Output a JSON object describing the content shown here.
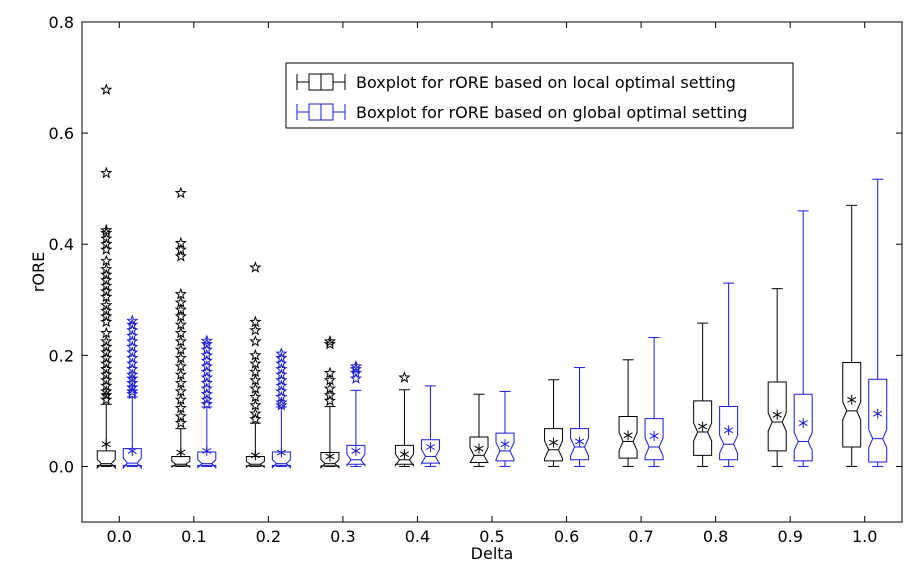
{
  "chart_data": {
    "type": "boxplot",
    "xlabel": "Delta",
    "ylabel": "rORE",
    "ylim": [
      -0.1,
      0.8
    ],
    "yticks": [
      0.0,
      0.2,
      0.4,
      0.6,
      0.8
    ],
    "ytick_labels": [
      "0.0",
      "0.2",
      "0.4",
      "0.6",
      "0.8"
    ],
    "categories": [
      "0.0",
      "0.1",
      "0.2",
      "0.3",
      "0.4",
      "0.5",
      "0.6",
      "0.7",
      "0.8",
      "0.9",
      "1.0"
    ],
    "legend_position": "top-center",
    "series": [
      {
        "name": "Boxplot for rORE based on local optimal setting",
        "color": "#000000",
        "boxes": [
          {
            "min": 0,
            "q1": 0.002,
            "median": 0.005,
            "q3": 0.028,
            "max": 0.112,
            "mean": 0.04,
            "outliers": [
              0.678,
              0.528,
              0.425,
              0.42,
              0.41,
              0.4,
              0.39,
              0.37,
              0.355,
              0.345,
              0.335,
              0.325,
              0.315,
              0.305,
              0.29,
              0.28,
              0.27,
              0.26,
              0.24,
              0.225,
              0.215,
              0.205,
              0.195,
              0.185,
              0.175,
              0.165,
              0.155,
              0.145,
              0.135,
              0.128,
              0.12
            ]
          },
          {
            "min": 0,
            "q1": 0.001,
            "median": 0.004,
            "q3": 0.018,
            "max": 0.068,
            "mean": 0.025,
            "outliers": [
              0.492,
              0.402,
              0.39,
              0.378,
              0.31,
              0.295,
              0.282,
              0.27,
              0.255,
              0.24,
              0.225,
              0.21,
              0.195,
              0.18,
              0.165,
              0.15,
              0.135,
              0.12,
              0.105,
              0.09,
              0.078
            ]
          },
          {
            "min": 0,
            "q1": 0.001,
            "median": 0.004,
            "q3": 0.018,
            "max": 0.078,
            "mean": 0.02,
            "outliers": [
              0.358,
              0.26,
              0.245,
              0.225,
              0.2,
              0.185,
              0.17,
              0.155,
              0.14,
              0.125,
              0.11,
              0.095,
              0.085
            ]
          },
          {
            "min": 0,
            "q1": 0.001,
            "median": 0.005,
            "q3": 0.025,
            "max": 0.108,
            "mean": 0.018,
            "outliers": [
              0.225,
              0.22,
              0.168,
              0.155,
              0.14,
              0.128,
              0.118
            ]
          },
          {
            "min": 0,
            "q1": 0.004,
            "median": 0.012,
            "q3": 0.038,
            "max": 0.138,
            "mean": 0.022,
            "outliers": [
              0.16
            ]
          },
          {
            "min": 0,
            "q1": 0.007,
            "median": 0.02,
            "q3": 0.053,
            "max": 0.13,
            "mean": 0.032,
            "outliers": []
          },
          {
            "min": 0,
            "q1": 0.01,
            "median": 0.03,
            "q3": 0.068,
            "max": 0.156,
            "mean": 0.043,
            "outliers": []
          },
          {
            "min": 0,
            "q1": 0.015,
            "median": 0.045,
            "q3": 0.09,
            "max": 0.192,
            "mean": 0.056,
            "outliers": []
          },
          {
            "min": 0,
            "q1": 0.02,
            "median": 0.062,
            "q3": 0.118,
            "max": 0.258,
            "mean": 0.072,
            "outliers": []
          },
          {
            "min": 0,
            "q1": 0.028,
            "median": 0.08,
            "q3": 0.152,
            "max": 0.32,
            "mean": 0.093,
            "outliers": []
          },
          {
            "min": 0,
            "q1": 0.035,
            "median": 0.1,
            "q3": 0.187,
            "max": 0.47,
            "mean": 0.12,
            "outliers": []
          }
        ]
      },
      {
        "name": "Boxplot for rORE based on global optimal setting",
        "color": "#1a1adb",
        "boxes": [
          {
            "min": 0,
            "q1": 0.002,
            "median": 0.006,
            "q3": 0.032,
            "max": 0.125,
            "mean": 0.028,
            "outliers": [
              0.262,
              0.255,
              0.245,
              0.235,
              0.225,
              0.215,
              0.205,
              0.195,
              0.185,
              0.175,
              0.165,
              0.158,
              0.15,
              0.142,
              0.135,
              0.13
            ]
          },
          {
            "min": 0,
            "q1": 0.002,
            "median": 0.005,
            "q3": 0.026,
            "max": 0.107,
            "mean": 0.028,
            "outliers": [
              0.226,
              0.22,
              0.21,
              0.2,
              0.19,
              0.18,
              0.17,
              0.16,
              0.15,
              0.14,
              0.13,
              0.12,
              0.112
            ]
          },
          {
            "min": 0,
            "q1": 0.002,
            "median": 0.005,
            "q3": 0.026,
            "max": 0.107,
            "mean": 0.025,
            "outliers": [
              0.203,
              0.195,
              0.185,
              0.175,
              0.165,
              0.155,
              0.145,
              0.135,
              0.125,
              0.115,
              0.11
            ]
          },
          {
            "min": 0,
            "q1": 0.004,
            "median": 0.012,
            "q3": 0.038,
            "max": 0.137,
            "mean": 0.028,
            "outliers": [
              0.18,
              0.175,
              0.168,
              0.158
            ]
          },
          {
            "min": 0,
            "q1": 0.006,
            "median": 0.018,
            "q3": 0.048,
            "max": 0.145,
            "mean": 0.035,
            "outliers": []
          },
          {
            "min": 0,
            "q1": 0.01,
            "median": 0.028,
            "q3": 0.06,
            "max": 0.135,
            "mean": 0.04,
            "outliers": []
          },
          {
            "min": 0,
            "q1": 0.012,
            "median": 0.035,
            "q3": 0.068,
            "max": 0.178,
            "mean": 0.045,
            "outliers": []
          },
          {
            "min": 0,
            "q1": 0.012,
            "median": 0.035,
            "q3": 0.086,
            "max": 0.232,
            "mean": 0.055,
            "outliers": []
          },
          {
            "min": 0,
            "q1": 0.012,
            "median": 0.04,
            "q3": 0.108,
            "max": 0.33,
            "mean": 0.065,
            "outliers": []
          },
          {
            "min": 0,
            "q1": 0.01,
            "median": 0.045,
            "q3": 0.13,
            "max": 0.46,
            "mean": 0.078,
            "outliers": []
          },
          {
            "min": 0,
            "q1": 0.008,
            "median": 0.05,
            "q3": 0.157,
            "max": 0.517,
            "mean": 0.095,
            "outliers": []
          }
        ]
      }
    ]
  }
}
